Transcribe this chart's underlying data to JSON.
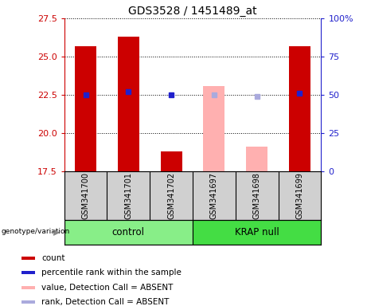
{
  "title": "GDS3528 / 1451489_at",
  "samples": [
    "GSM341700",
    "GSM341701",
    "GSM341702",
    "GSM341697",
    "GSM341698",
    "GSM341699"
  ],
  "ylim_left": [
    17.5,
    27.5
  ],
  "ylim_right": [
    0,
    100
  ],
  "yticks_left": [
    17.5,
    20.0,
    22.5,
    25.0,
    27.5
  ],
  "yticks_right": [
    0,
    25,
    50,
    75,
    100
  ],
  "count_values": [
    25.7,
    26.3,
    18.8,
    null,
    null,
    25.7
  ],
  "count_color": "#CC0000",
  "percentile_values": [
    22.5,
    22.7,
    22.5,
    null,
    null,
    22.6
  ],
  "percentile_color": "#2020CC",
  "absent_value_values": [
    null,
    null,
    null,
    23.1,
    19.1,
    null
  ],
  "absent_value_color": "#FFB0B0",
  "absent_rank_values": [
    null,
    null,
    null,
    22.5,
    22.4,
    null
  ],
  "absent_rank_color": "#AAAADD",
  "bar_baseline": 17.5,
  "bar_width": 0.5,
  "left_axis_color": "#CC0000",
  "right_axis_color": "#2222CC",
  "sample_area_color": "#D0D0D0",
  "control_color": "#88EE88",
  "krap_color": "#44DD44",
  "legend_items": [
    {
      "color": "#CC0000",
      "label": "count"
    },
    {
      "color": "#2020CC",
      "label": "percentile rank within the sample"
    },
    {
      "color": "#FFB0B0",
      "label": "value, Detection Call = ABSENT"
    },
    {
      "color": "#AAAADD",
      "label": "rank, Detection Call = ABSENT"
    }
  ]
}
